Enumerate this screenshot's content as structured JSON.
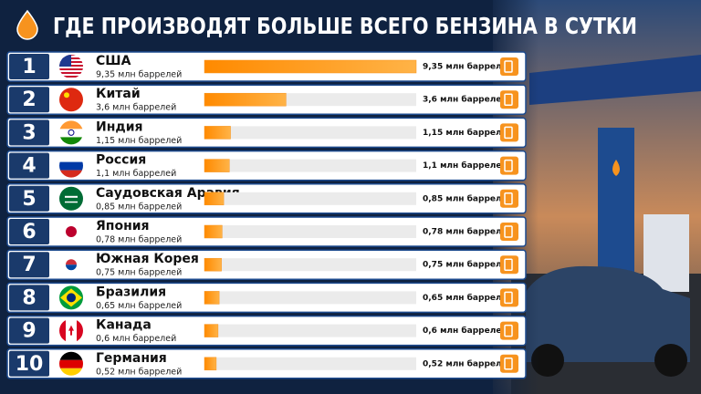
{
  "chart_data": {
    "type": "bar",
    "title": "ГДЕ ПРОИЗВОДЯТ БОЛЬШЕ ВСЕГО БЕНЗИНА В СУТКИ",
    "ranks": [
      1,
      2,
      3,
      4,
      5,
      6,
      7,
      8,
      9,
      10
    ],
    "categories": [
      "США",
      "Китай",
      "Индия",
      "Россия",
      "Саудовская Аравия",
      "Япония",
      "Южная Корея",
      "Бразилия",
      "Канада",
      "Германия"
    ],
    "values": [
      9.35,
      3.6,
      1.15,
      1.1,
      0.85,
      0.78,
      0.75,
      0.65,
      0.6,
      0.52
    ],
    "value_labels": [
      "9,35 млн баррелей",
      "3,6 млн баррелей",
      "1,15 млн баррелей",
      "1,1 млн баррелей",
      "0,85 млн баррелей",
      "0,78 млн баррелей",
      "0,75 млн баррелей",
      "0,65 млн баррелей",
      "0,6 млн баррелей",
      "0,52 млн баррелей"
    ],
    "color": "#f7931e"
  }
}
